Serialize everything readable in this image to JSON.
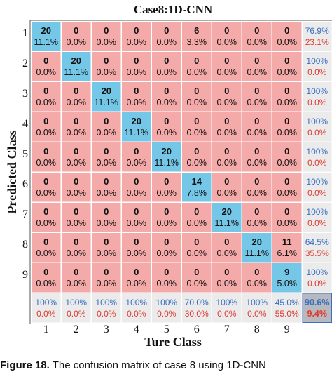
{
  "chart_data": {
    "type": "heatmap",
    "title": "Case8:1D-CNN",
    "xlabel": "Ture Class",
    "ylabel": "Predicted Class",
    "x_ticks": [
      "1",
      "2",
      "3",
      "4",
      "5",
      "6",
      "7",
      "8",
      "9"
    ],
    "y_ticks": [
      "1",
      "2",
      "3",
      "4",
      "5",
      "6",
      "7",
      "8",
      "9"
    ],
    "matrix": [
      [
        20,
        0,
        0,
        0,
        0,
        6,
        0,
        0,
        0
      ],
      [
        0,
        20,
        0,
        0,
        0,
        0,
        0,
        0,
        0
      ],
      [
        0,
        0,
        20,
        0,
        0,
        0,
        0,
        0,
        0
      ],
      [
        0,
        0,
        0,
        20,
        0,
        0,
        0,
        0,
        0
      ],
      [
        0,
        0,
        0,
        0,
        20,
        0,
        0,
        0,
        0
      ],
      [
        0,
        0,
        0,
        0,
        0,
        14,
        0,
        0,
        0
      ],
      [
        0,
        0,
        0,
        0,
        0,
        0,
        20,
        0,
        0
      ],
      [
        0,
        0,
        0,
        0,
        0,
        0,
        0,
        20,
        11
      ],
      [
        0,
        0,
        0,
        0,
        0,
        0,
        0,
        0,
        9
      ]
    ],
    "percent": [
      [
        "11.1%",
        "0.0%",
        "0.0%",
        "0.0%",
        "0.0%",
        "3.3%",
        "0.0%",
        "0.0%",
        "0.0%"
      ],
      [
        "0.0%",
        "11.1%",
        "0.0%",
        "0.0%",
        "0.0%",
        "0.0%",
        "0.0%",
        "0.0%",
        "0.0%"
      ],
      [
        "0.0%",
        "0.0%",
        "11.1%",
        "0.0%",
        "0.0%",
        "0.0%",
        "0.0%",
        "0.0%",
        "0.0%"
      ],
      [
        "0.0%",
        "0.0%",
        "0.0%",
        "11.1%",
        "0.0%",
        "0.0%",
        "0.0%",
        "0.0%",
        "0.0%"
      ],
      [
        "0.0%",
        "0.0%",
        "0.0%",
        "0.0%",
        "11.1%",
        "0.0%",
        "0.0%",
        "0.0%",
        "0.0%"
      ],
      [
        "0.0%",
        "0.0%",
        "0.0%",
        "0.0%",
        "0.0%",
        "7.8%",
        "0.0%",
        "0.0%",
        "0.0%"
      ],
      [
        "0.0%",
        "0.0%",
        "0.0%",
        "0.0%",
        "0.0%",
        "0.0%",
        "11.1%",
        "0.0%",
        "0.0%"
      ],
      [
        "0.0%",
        "0.0%",
        "0.0%",
        "0.0%",
        "0.0%",
        "0.0%",
        "0.0%",
        "11.1%",
        "6.1%"
      ],
      [
        "0.0%",
        "0.0%",
        "0.0%",
        "0.0%",
        "0.0%",
        "0.0%",
        "0.0%",
        "0.0%",
        "5.0%"
      ]
    ],
    "row_summary": [
      [
        "76.9%",
        "23.1%"
      ],
      [
        "100%",
        "0.0%"
      ],
      [
        "100%",
        "0.0%"
      ],
      [
        "100%",
        "0.0%"
      ],
      [
        "100%",
        "0.0%"
      ],
      [
        "100%",
        "0.0%"
      ],
      [
        "100%",
        "0.0%"
      ],
      [
        "64.5%",
        "35.5%"
      ],
      [
        "100%",
        "0.0%"
      ]
    ],
    "col_summary": [
      [
        "100%",
        "0.0%"
      ],
      [
        "100%",
        "0.0%"
      ],
      [
        "100%",
        "0.0%"
      ],
      [
        "100%",
        "0.0%"
      ],
      [
        "100%",
        "0.0%"
      ],
      [
        "70.0%",
        "30.0%"
      ],
      [
        "100%",
        "0.0%"
      ],
      [
        "100%",
        "0.0%"
      ],
      [
        "45.0%",
        "55.0%"
      ]
    ],
    "overall": [
      "90.6%",
      "9.4%"
    ]
  },
  "colors": {
    "diagonal": "#75c7e8",
    "off_diagonal": "#f4aaa8",
    "summary": "#ebebeb",
    "overall": "#b7b9be",
    "correct_text": "#3a6fc0",
    "error_text": "#e03a30",
    "value_text": "#111111"
  },
  "caption": {
    "label": "Figure 18.",
    "text": "The confusion matrix of case 8 using 1D-CNN"
  }
}
